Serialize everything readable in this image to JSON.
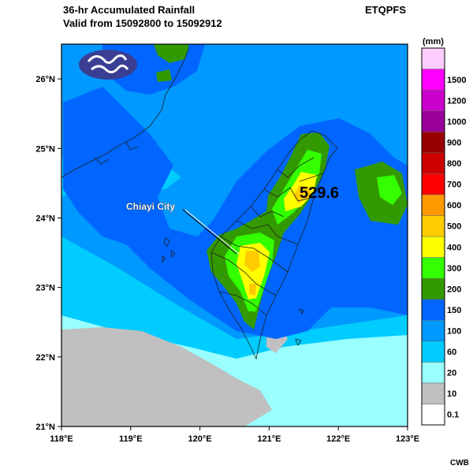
{
  "header": {
    "title_line1": "36-hr Accumulated Rainfall",
    "title_line2": "Valid from 15092800 to 15092912",
    "product": "ETQPFS"
  },
  "footer": {
    "credit": "CWB"
  },
  "map": {
    "lon_range": [
      118,
      123
    ],
    "lat_range": [
      21,
      26.5
    ],
    "lon_ticks": [
      "118°E",
      "119°E",
      "120°E",
      "121°E",
      "122°E",
      "123°E"
    ],
    "lat_ticks": [
      "21°N",
      "22°N",
      "23°N",
      "24°N",
      "25°N",
      "26°N"
    ],
    "annotations": {
      "city_label": "Chiayi City",
      "max_value": "529.6"
    }
  },
  "colorbar": {
    "unit": "(mm)",
    "levels": [
      {
        "label": "0.1",
        "color": "#ffffff"
      },
      {
        "label": "10",
        "color": "#c0c0c0"
      },
      {
        "label": "20",
        "color": "#99ffff"
      },
      {
        "label": "60",
        "color": "#00ccff"
      },
      {
        "label": "100",
        "color": "#0099ff"
      },
      {
        "label": "150",
        "color": "#0066ff"
      },
      {
        "label": "200",
        "color": "#339900"
      },
      {
        "label": "300",
        "color": "#33ff00"
      },
      {
        "label": "400",
        "color": "#ffff00"
      },
      {
        "label": "500",
        "color": "#ffcc00"
      },
      {
        "label": "600",
        "color": "#ff9900"
      },
      {
        "label": "700",
        "color": "#ff0000"
      },
      {
        "label": "800",
        "color": "#cc0000"
      },
      {
        "label": "900",
        "color": "#990000"
      },
      {
        "label": "1000",
        "color": "#990099"
      },
      {
        "label": "1200",
        "color": "#cc00cc"
      },
      {
        "label": "1500",
        "color": "#ff00ff"
      },
      {
        "label": "",
        "color": "#ffccff"
      }
    ]
  }
}
